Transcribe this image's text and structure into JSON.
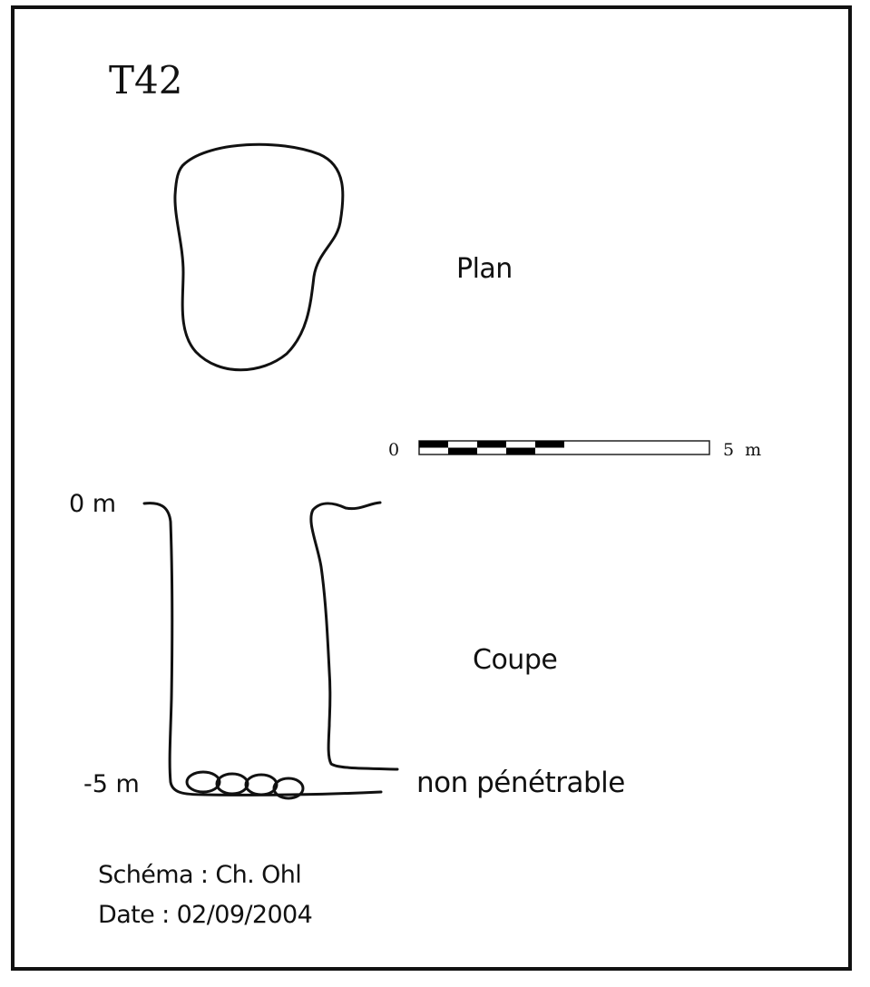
{
  "title": "T42",
  "plan": {
    "label": "Plan"
  },
  "section": {
    "label": "Coupe",
    "depth_top": "0 m",
    "depth_bottom": "-5 m",
    "bottom_note": "non pénétrable"
  },
  "scale_bar": {
    "min_label": "0",
    "max_label": "5 m",
    "fill_color": "#000000"
  },
  "credits": {
    "author": "Schéma : Ch. Ohl",
    "date": "Date : 02/09/2004"
  }
}
